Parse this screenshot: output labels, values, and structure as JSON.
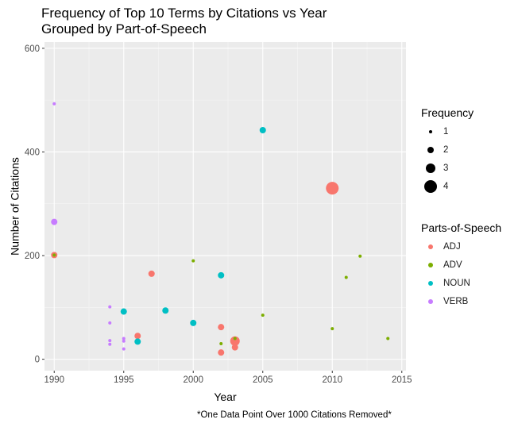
{
  "title": "Frequency of Top 10 Terms by Citations vs Year\nGrouped by Part-of-Speech",
  "caption": "*One Data Point Over 1000 Citations Removed*",
  "chart_data": {
    "type": "scatter",
    "xlabel": "Year",
    "ylabel": "Number of Citations",
    "xlim": [
      1989.3,
      2015.3
    ],
    "ylim": [
      -22,
      612
    ],
    "x_ticks": [
      1990,
      1995,
      2000,
      2005,
      2010,
      2015
    ],
    "y_ticks": [
      0,
      200,
      400,
      600
    ],
    "grid": true,
    "panel_background": "#ebebeb",
    "size_legend": {
      "title": "Frequency",
      "values": [
        1,
        2,
        3,
        4
      ]
    },
    "color_legend": {
      "title": "Parts-of-Speech",
      "placement": "right"
    },
    "series": [
      {
        "name": "ADJ",
        "color": "#f8766d",
        "points": [
          {
            "x": 1990,
            "y": 201,
            "frequency": 2
          },
          {
            "x": 1997,
            "y": 165,
            "frequency": 2
          },
          {
            "x": 1996,
            "y": 45,
            "frequency": 2
          },
          {
            "x": 2002,
            "y": 62,
            "frequency": 2
          },
          {
            "x": 2002,
            "y": 13,
            "frequency": 2
          },
          {
            "x": 2003,
            "y": 35,
            "frequency": 3
          },
          {
            "x": 2003,
            "y": 23,
            "frequency": 2
          },
          {
            "x": 2010,
            "y": 330,
            "frequency": 4
          }
        ]
      },
      {
        "name": "ADV",
        "color": "#7cae00",
        "points": [
          {
            "x": 1990,
            "y": 201,
            "frequency": 1
          },
          {
            "x": 2000,
            "y": 190,
            "frequency": 1
          },
          {
            "x": 2002,
            "y": 30,
            "frequency": 1
          },
          {
            "x": 2003,
            "y": 40,
            "frequency": 1
          },
          {
            "x": 2005,
            "y": 85,
            "frequency": 1
          },
          {
            "x": 2010,
            "y": 59,
            "frequency": 1
          },
          {
            "x": 2011,
            "y": 158,
            "frequency": 1
          },
          {
            "x": 2012,
            "y": 199,
            "frequency": 1
          },
          {
            "x": 2014,
            "y": 40,
            "frequency": 1
          }
        ]
      },
      {
        "name": "NOUN",
        "color": "#00bfc4",
        "points": [
          {
            "x": 1995,
            "y": 92,
            "frequency": 2
          },
          {
            "x": 1996,
            "y": 34,
            "frequency": 2
          },
          {
            "x": 1998,
            "y": 94,
            "frequency": 2
          },
          {
            "x": 2000,
            "y": 70,
            "frequency": 2
          },
          {
            "x": 2002,
            "y": 162,
            "frequency": 2
          },
          {
            "x": 2005,
            "y": 442,
            "frequency": 2
          }
        ]
      },
      {
        "name": "VERB",
        "color": "#c77cff",
        "points": [
          {
            "x": 1990,
            "y": 493,
            "frequency": 1
          },
          {
            "x": 1990,
            "y": 265,
            "frequency": 2
          },
          {
            "x": 1994,
            "y": 101,
            "frequency": 1
          },
          {
            "x": 1994,
            "y": 70,
            "frequency": 1
          },
          {
            "x": 1994,
            "y": 36,
            "frequency": 1
          },
          {
            "x": 1994,
            "y": 29,
            "frequency": 1
          },
          {
            "x": 1995,
            "y": 40,
            "frequency": 1
          },
          {
            "x": 1995,
            "y": 35,
            "frequency": 1
          },
          {
            "x": 1995,
            "y": 20,
            "frequency": 1
          }
        ]
      }
    ]
  }
}
